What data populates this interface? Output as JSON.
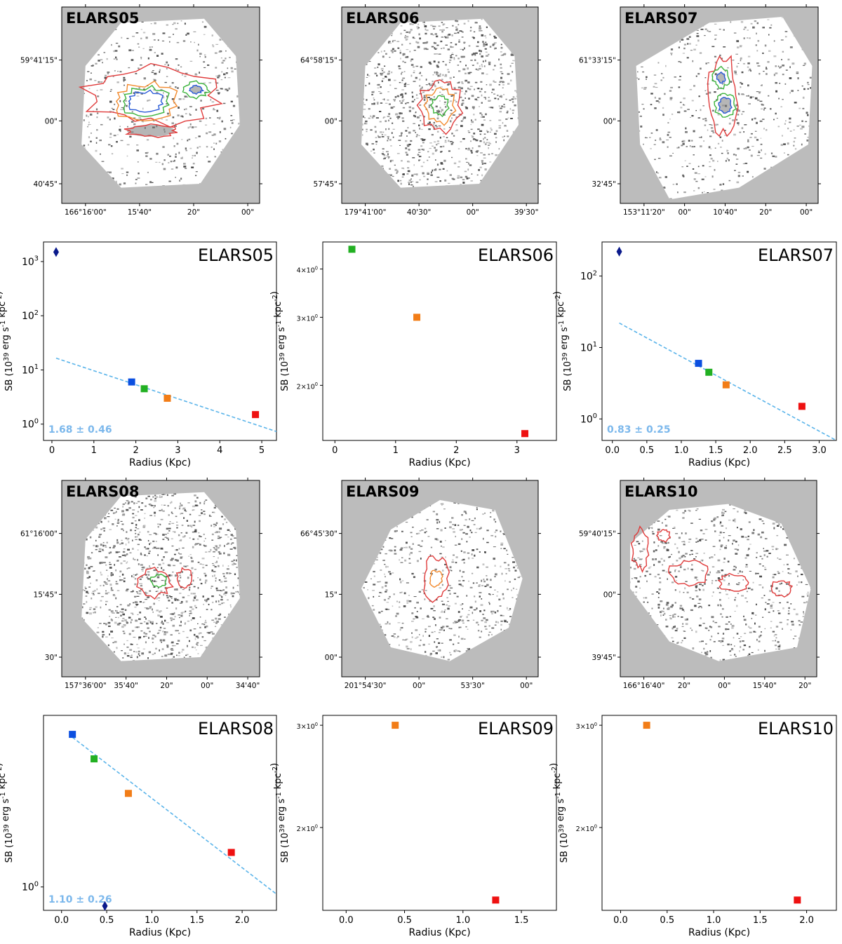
{
  "colors": {
    "map_bg": "#bcbcbc",
    "contour_red": "#e03b3b",
    "contour_orange": "#f28a2e",
    "contour_green": "#3bb33b",
    "contour_blue": "#2a5bd7",
    "fit_line": "#5ab4ea",
    "slope_text": "#7cb8ec"
  },
  "maps": [
    {
      "title": "ELARS05",
      "dec_labels": [
        "59°41'15\"",
        "00\"",
        "40'45\""
      ],
      "ra_labels": [
        "166°16'00\"",
        "15'40\"",
        "20\"",
        "00\""
      ],
      "shape": "octagon",
      "contours": "strong-horizontal",
      "noise": "light"
    },
    {
      "title": "ELARS06",
      "dec_labels": [
        "64°58'15\"",
        "00\"",
        "57'45\""
      ],
      "ra_labels": [
        "179°41'00\"",
        "40'30\"",
        "00\"",
        "39'30\""
      ],
      "shape": "octagon",
      "contours": "small-core",
      "noise": "dense"
    },
    {
      "title": "ELARS07",
      "dec_labels": [
        "61°33'15\"",
        "00\"",
        "32'45\""
      ],
      "ra_labels": [
        "153°11'20\"",
        "00\"",
        "10'40\"",
        "20\"",
        "00\""
      ],
      "shape": "tilted",
      "contours": "vertical",
      "noise": "light"
    },
    {
      "title": "ELARS08",
      "dec_labels": [
        "61°16'00\"",
        "15'45\"",
        "30\""
      ],
      "ra_labels": [
        "157°36'00\"",
        "35'40\"",
        "20\"",
        "00\"",
        "34'40\""
      ],
      "shape": "octagon",
      "contours": "small-pair",
      "noise": "dense"
    },
    {
      "title": "ELARS09",
      "dec_labels": [
        "66°45'30\"",
        "15\"",
        "00\""
      ],
      "ra_labels": [
        "201°54'30\"",
        "00\"",
        "53'30\"",
        "00\""
      ],
      "shape": "diamond",
      "contours": "tiny",
      "noise": "medium"
    },
    {
      "title": "ELARS10",
      "dec_labels": [
        "59°40'15\"",
        "00\"",
        "39'45\""
      ],
      "ra_labels": [
        "166°16'40\"",
        "20\"",
        "00\"",
        "15'40\"",
        "20\""
      ],
      "shape": "wide",
      "contours": "chain",
      "noise": "medium"
    }
  ],
  "chart_data": [
    {
      "type": "scatter",
      "title": "ELARS05",
      "scale": "log",
      "xlabel": "Radius (Kpc)",
      "ylabel": "SB (10^39 erg s^-1 kpc^-2)",
      "xlim": [
        -0.2,
        5.35
      ],
      "ylim": [
        0.5,
        2300
      ],
      "xticks": [
        0,
        1,
        2,
        3,
        4,
        5
      ],
      "xtick_labels": [
        "0",
        "1",
        "2",
        "3",
        "4",
        "5"
      ],
      "yticks": [
        1,
        10,
        100,
        1000
      ],
      "ytick_labels": [
        "10^0",
        "10^1",
        "10^2",
        "10^3"
      ],
      "points": [
        {
          "x": 0.1,
          "y": 1500,
          "color": "#0a1a8c",
          "marker": "diamond"
        },
        {
          "x": 1.9,
          "y": 6.0,
          "color": "#0b4fe0",
          "marker": "square"
        },
        {
          "x": 2.2,
          "y": 4.5,
          "color": "#22b022",
          "marker": "square"
        },
        {
          "x": 2.75,
          "y": 3.0,
          "color": "#f27d17",
          "marker": "square"
        },
        {
          "x": 4.85,
          "y": 1.5,
          "color": "#ee1111",
          "marker": "square"
        }
      ],
      "fit": {
        "x": [
          0.1,
          5.35
        ],
        "y": [
          16.5,
          0.73
        ]
      },
      "slope_label": "1.68 ± 0.46"
    },
    {
      "type": "scatter",
      "title": "ELARS06",
      "scale": "log",
      "xlabel": "Radius (Kpc)",
      "ylabel": "SB (10^39 erg s^-1 kpc^-2)",
      "xlim": [
        -0.2,
        3.65
      ],
      "ylim": [
        1.44,
        4.7
      ],
      "xticks": [
        0,
        1,
        2,
        3
      ],
      "xtick_labels": [
        "0",
        "1",
        "2",
        "3"
      ],
      "yticks": [
        2,
        3,
        4
      ],
      "ytick_labels": [
        "2×10^0",
        "3×10^0",
        "4×10^0"
      ],
      "points": [
        {
          "x": 0.28,
          "y": 4.5,
          "color": "#22b022",
          "marker": "square"
        },
        {
          "x": 1.35,
          "y": 3.0,
          "color": "#f27d17",
          "marker": "square"
        },
        {
          "x": 3.13,
          "y": 1.5,
          "color": "#ee1111",
          "marker": "square"
        }
      ],
      "fit": null,
      "slope_label": ""
    },
    {
      "type": "scatter",
      "title": "ELARS07",
      "scale": "log",
      "xlabel": "Radius (Kpc)",
      "ylabel": "SB (10^39 erg s^-1 kpc^-2)",
      "xlim": [
        -0.15,
        3.25
      ],
      "ylim": [
        0.5,
        300
      ],
      "xticks": [
        0,
        0.5,
        1,
        1.5,
        2,
        2.5,
        3
      ],
      "xtick_labels": [
        "0.0",
        "0.5",
        "1.0",
        "1.5",
        "2.0",
        "2.5",
        "3.0"
      ],
      "yticks": [
        1,
        10,
        100
      ],
      "ytick_labels": [
        "10^0",
        "10^1",
        "10^2"
      ],
      "points": [
        {
          "x": 0.1,
          "y": 220,
          "color": "#0a1a8c",
          "marker": "diamond"
        },
        {
          "x": 1.25,
          "y": 6.0,
          "color": "#0b4fe0",
          "marker": "square"
        },
        {
          "x": 1.4,
          "y": 4.5,
          "color": "#22b022",
          "marker": "square"
        },
        {
          "x": 1.65,
          "y": 3.0,
          "color": "#f27d17",
          "marker": "square"
        },
        {
          "x": 2.75,
          "y": 1.5,
          "color": "#ee1111",
          "marker": "square"
        }
      ],
      "fit": {
        "x": [
          0.1,
          3.25
        ],
        "y": [
          22,
          0.5
        ]
      },
      "slope_label": "0.83 ± 0.25"
    },
    {
      "type": "scatter",
      "title": "ELARS08",
      "scale": "log",
      "xlabel": "Radius (Kpc)",
      "ylabel": "SB (10^39 erg s^-1 kpc^-2)",
      "xlim": [
        -0.2,
        2.38
      ],
      "ylim": [
        0.76,
        7.5
      ],
      "xticks": [
        0,
        0.5,
        1,
        1.5,
        2
      ],
      "xtick_labels": [
        "0.0",
        "0.5",
        "1.0",
        "1.5",
        "2.0"
      ],
      "yticks": [
        1
      ],
      "ytick_labels": [
        "10^0"
      ],
      "points": [
        {
          "x": 0.12,
          "y": 6.0,
          "color": "#0b4fe0",
          "marker": "square"
        },
        {
          "x": 0.36,
          "y": 4.5,
          "color": "#22b022",
          "marker": "square"
        },
        {
          "x": 0.74,
          "y": 3.0,
          "color": "#f27d17",
          "marker": "square"
        },
        {
          "x": 1.88,
          "y": 1.5,
          "color": "#ee1111",
          "marker": "square"
        },
        {
          "x": 0.48,
          "y": 0.8,
          "color": "#0a1a8c",
          "marker": "diamond"
        }
      ],
      "fit": {
        "x": [
          0.12,
          2.38
        ],
        "y": [
          5.8,
          0.92
        ]
      },
      "slope_label": "1.10 ± 0.26"
    },
    {
      "type": "scatter",
      "title": "ELARS09",
      "scale": "log",
      "xlabel": "Radius (Kpc)",
      "ylabel": "SB (10^39 erg s^-1 kpc^-2)",
      "xlim": [
        -0.2,
        1.8
      ],
      "ylim": [
        1.44,
        3.12
      ],
      "xticks": [
        0,
        0.5,
        1,
        1.5
      ],
      "xtick_labels": [
        "0.0",
        "0.5",
        "1.0",
        "1.5"
      ],
      "yticks": [
        2,
        3
      ],
      "ytick_labels": [
        "2×10^0",
        "3×10^0"
      ],
      "points": [
        {
          "x": 0.42,
          "y": 3.0,
          "color": "#f27d17",
          "marker": "square"
        },
        {
          "x": 1.28,
          "y": 1.5,
          "color": "#ee1111",
          "marker": "square"
        }
      ],
      "fit": null,
      "slope_label": ""
    },
    {
      "type": "scatter",
      "title": "ELARS10",
      "scale": "log",
      "xlabel": "Radius (Kpc)",
      "ylabel": "SB (10^39 erg s^-1 kpc^-2)",
      "xlim": [
        -0.2,
        2.32
      ],
      "ylim": [
        1.44,
        3.12
      ],
      "xticks": [
        0,
        0.5,
        1,
        1.5,
        2
      ],
      "xtick_labels": [
        "0.0",
        "0.5",
        "1.0",
        "1.5",
        "2.0"
      ],
      "yticks": [
        2,
        3
      ],
      "ytick_labels": [
        "2×10^0",
        "3×10^0"
      ],
      "points": [
        {
          "x": 0.28,
          "y": 3.0,
          "color": "#f27d17",
          "marker": "square"
        },
        {
          "x": 1.9,
          "y": 1.5,
          "color": "#ee1111",
          "marker": "square"
        }
      ],
      "fit": null,
      "slope_label": ""
    }
  ]
}
